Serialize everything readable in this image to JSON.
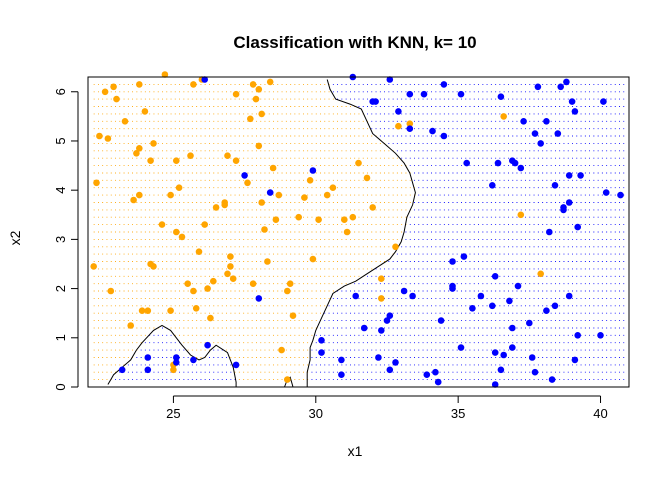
{
  "chart_data": {
    "type": "scatter",
    "title": "Classification with KNN, k= 10",
    "xlabel": "x1",
    "ylabel": "x2",
    "xlim": [
      22,
      41
    ],
    "ylim": [
      0,
      6.3
    ],
    "x_ticks": [
      25,
      30,
      35,
      40
    ],
    "y_ticks": [
      0,
      1,
      2,
      3,
      4,
      5,
      6
    ],
    "grid": false,
    "legend": "none",
    "background_grid": {
      "x_range": [
        22.2,
        40.8
      ],
      "y_range": [
        0,
        6.25
      ],
      "step": 0.15
    },
    "decision_boundary": [
      [
        [
          22.7,
          0.05
        ],
        [
          22.8,
          0.15
        ],
        [
          22.9,
          0.25
        ],
        [
          23.2,
          0.4
        ],
        [
          23.5,
          0.55
        ],
        [
          23.7,
          0.75
        ],
        [
          23.9,
          0.9
        ],
        [
          24.3,
          1.15
        ],
        [
          24.6,
          1.25
        ],
        [
          24.9,
          1.15
        ],
        [
          25.1,
          1.0
        ],
        [
          25.3,
          0.85
        ],
        [
          25.6,
          0.65
        ],
        [
          25.9,
          0.55
        ],
        [
          26.1,
          0.6
        ],
        [
          26.3,
          0.75
        ],
        [
          26.5,
          0.85
        ],
        [
          26.9,
          0.7
        ],
        [
          27.1,
          0.4
        ],
        [
          27.2,
          0.1
        ],
        [
          27.2,
          0.0
        ]
      ],
      [
        [
          28.9,
          0.0
        ],
        [
          29.0,
          0.15
        ],
        [
          29.1,
          0.2
        ],
        [
          29.2,
          0.0
        ]
      ],
      [
        [
          29.7,
          0.0
        ],
        [
          29.7,
          0.3
        ],
        [
          29.8,
          0.55
        ],
        [
          29.8,
          0.8
        ],
        [
          29.9,
          0.95
        ],
        [
          30.0,
          1.15
        ],
        [
          30.2,
          1.4
        ],
        [
          30.4,
          1.65
        ],
        [
          30.6,
          1.9
        ],
        [
          31.0,
          2.05
        ],
        [
          31.4,
          2.15
        ],
        [
          31.8,
          2.3
        ],
        [
          32.2,
          2.45
        ],
        [
          32.6,
          2.6
        ],
        [
          32.8,
          2.75
        ],
        [
          33.0,
          2.95
        ],
        [
          33.1,
          3.15
        ],
        [
          33.2,
          3.45
        ],
        [
          33.4,
          3.7
        ],
        [
          33.5,
          3.95
        ],
        [
          33.3,
          4.35
        ],
        [
          33.1,
          4.55
        ],
        [
          32.8,
          4.75
        ],
        [
          32.4,
          4.95
        ],
        [
          32.0,
          5.15
        ],
        [
          31.8,
          5.4
        ],
        [
          31.6,
          5.65
        ],
        [
          31.2,
          5.75
        ],
        [
          30.7,
          5.85
        ],
        [
          30.5,
          6.05
        ],
        [
          30.4,
          6.25
        ]
      ]
    ],
    "series": [
      {
        "color": "#ffa500",
        "points": [
          [
            22.2,
            2.45
          ],
          [
            22.3,
            4.15
          ],
          [
            22.4,
            5.1
          ],
          [
            22.6,
            6.0
          ],
          [
            22.7,
            5.05
          ],
          [
            22.8,
            1.95
          ],
          [
            22.9,
            6.1
          ],
          [
            23.0,
            5.85
          ],
          [
            23.3,
            5.4
          ],
          [
            23.5,
            1.25
          ],
          [
            23.6,
            3.8
          ],
          [
            23.7,
            4.75
          ],
          [
            23.8,
            4.85
          ],
          [
            23.8,
            6.15
          ],
          [
            23.8,
            3.9
          ],
          [
            23.9,
            1.55
          ],
          [
            24.0,
            5.6
          ],
          [
            24.1,
            1.55
          ],
          [
            24.2,
            4.6
          ],
          [
            24.2,
            2.5
          ],
          [
            24.3,
            2.45
          ],
          [
            24.3,
            4.95
          ],
          [
            24.6,
            3.3
          ],
          [
            24.7,
            6.35
          ],
          [
            24.9,
            1.55
          ],
          [
            24.9,
            3.9
          ],
          [
            25.0,
            0.35
          ],
          [
            25.0,
            0.45
          ],
          [
            25.1,
            4.6
          ],
          [
            25.1,
            3.15
          ],
          [
            25.2,
            4.05
          ],
          [
            25.3,
            3.05
          ],
          [
            25.5,
            2.1
          ],
          [
            25.6,
            4.7
          ],
          [
            25.7,
            1.95
          ],
          [
            25.7,
            6.15
          ],
          [
            25.8,
            1.6
          ],
          [
            25.9,
            2.75
          ],
          [
            26.0,
            6.25
          ],
          [
            26.1,
            3.3
          ],
          [
            26.2,
            2.0
          ],
          [
            26.3,
            1.4
          ],
          [
            26.4,
            2.15
          ],
          [
            26.5,
            3.65
          ],
          [
            26.8,
            3.75
          ],
          [
            26.8,
            3.7
          ],
          [
            26.9,
            2.3
          ],
          [
            26.9,
            4.7
          ],
          [
            27.0,
            2.45
          ],
          [
            27.0,
            2.65
          ],
          [
            27.1,
            2.2
          ],
          [
            27.2,
            5.95
          ],
          [
            27.2,
            4.6
          ],
          [
            27.6,
            4.15
          ],
          [
            27.7,
            5.45
          ],
          [
            27.8,
            6.15
          ],
          [
            27.8,
            2.1
          ],
          [
            27.9,
            5.85
          ],
          [
            28.0,
            6.05
          ],
          [
            28.0,
            4.9
          ],
          [
            28.1,
            3.75
          ],
          [
            28.1,
            5.55
          ],
          [
            28.2,
            3.2
          ],
          [
            28.3,
            2.55
          ],
          [
            28.4,
            6.2
          ],
          [
            28.5,
            4.45
          ],
          [
            28.6,
            3.4
          ],
          [
            28.7,
            3.9
          ],
          [
            28.8,
            0.75
          ],
          [
            29.0,
            1.95
          ],
          [
            29.0,
            0.15
          ],
          [
            29.1,
            2.1
          ],
          [
            29.2,
            1.45
          ],
          [
            29.4,
            3.45
          ],
          [
            29.6,
            3.85
          ],
          [
            29.8,
            4.2
          ],
          [
            29.9,
            2.6
          ],
          [
            30.1,
            3.4
          ],
          [
            30.4,
            3.9
          ],
          [
            30.6,
            4.05
          ],
          [
            31.0,
            3.4
          ],
          [
            31.1,
            3.15
          ],
          [
            31.3,
            3.45
          ],
          [
            31.5,
            4.55
          ],
          [
            31.8,
            4.25
          ],
          [
            32.0,
            3.65
          ],
          [
            32.3,
            2.2
          ],
          [
            32.3,
            1.8
          ],
          [
            32.8,
            2.85
          ],
          [
            32.9,
            5.3
          ],
          [
            33.3,
            5.35
          ],
          [
            36.6,
            5.5
          ],
          [
            37.2,
            3.5
          ],
          [
            37.9,
            2.3
          ]
        ]
      },
      {
        "color": "#0000ff",
        "points": [
          [
            23.2,
            0.35
          ],
          [
            24.1,
            0.6
          ],
          [
            24.1,
            0.35
          ],
          [
            25.1,
            0.6
          ],
          [
            25.1,
            0.5
          ],
          [
            25.7,
            0.55
          ],
          [
            26.1,
            6.25
          ],
          [
            26.2,
            0.85
          ],
          [
            27.2,
            0.45
          ],
          [
            27.5,
            4.3
          ],
          [
            28.0,
            1.8
          ],
          [
            28.4,
            3.95
          ],
          [
            29.9,
            4.4
          ],
          [
            30.2,
            0.7
          ],
          [
            30.2,
            0.95
          ],
          [
            30.9,
            0.55
          ],
          [
            30.9,
            0.25
          ],
          [
            31.3,
            6.3
          ],
          [
            31.4,
            1.85
          ],
          [
            31.7,
            1.2
          ],
          [
            32.0,
            5.8
          ],
          [
            32.1,
            5.8
          ],
          [
            32.2,
            0.6
          ],
          [
            32.3,
            1.15
          ],
          [
            32.5,
            1.35
          ],
          [
            32.6,
            1.45
          ],
          [
            32.6,
            6.25
          ],
          [
            32.6,
            0.35
          ],
          [
            32.8,
            0.5
          ],
          [
            32.9,
            5.6
          ],
          [
            33.1,
            1.95
          ],
          [
            33.3,
            5.25
          ],
          [
            33.3,
            5.95
          ],
          [
            33.4,
            1.85
          ],
          [
            33.8,
            5.95
          ],
          [
            33.9,
            0.25
          ],
          [
            34.1,
            5.2
          ],
          [
            34.2,
            0.3
          ],
          [
            34.3,
            0.1
          ],
          [
            34.4,
            1.35
          ],
          [
            34.5,
            6.15
          ],
          [
            34.5,
            5.1
          ],
          [
            34.8,
            2.05
          ],
          [
            34.8,
            2.0
          ],
          [
            34.8,
            2.55
          ],
          [
            35.1,
            0.8
          ],
          [
            35.1,
            5.95
          ],
          [
            35.2,
            2.65
          ],
          [
            35.3,
            4.55
          ],
          [
            35.5,
            1.6
          ],
          [
            35.8,
            1.85
          ],
          [
            36.2,
            1.65
          ],
          [
            36.2,
            4.1
          ],
          [
            36.3,
            2.25
          ],
          [
            36.3,
            0.05
          ],
          [
            36.3,
            0.7
          ],
          [
            36.4,
            4.55
          ],
          [
            36.5,
            5.9
          ],
          [
            36.5,
            0.35
          ],
          [
            36.6,
            0.65
          ],
          [
            36.8,
            1.75
          ],
          [
            36.9,
            0.8
          ],
          [
            36.9,
            1.2
          ],
          [
            36.9,
            4.6
          ],
          [
            37.0,
            4.55
          ],
          [
            37.1,
            2.05
          ],
          [
            37.2,
            4.45
          ],
          [
            37.3,
            5.4
          ],
          [
            37.5,
            1.3
          ],
          [
            37.6,
            0.6
          ],
          [
            37.7,
            0.3
          ],
          [
            37.7,
            5.15
          ],
          [
            37.8,
            6.1
          ],
          [
            37.9,
            4.95
          ],
          [
            38.1,
            1.55
          ],
          [
            38.1,
            5.4
          ],
          [
            38.2,
            3.15
          ],
          [
            38.3,
            0.15
          ],
          [
            38.4,
            1.65
          ],
          [
            38.4,
            4.1
          ],
          [
            38.5,
            5.15
          ],
          [
            38.6,
            6.1
          ],
          [
            38.7,
            3.6
          ],
          [
            38.7,
            3.65
          ],
          [
            38.8,
            6.2
          ],
          [
            38.9,
            1.85
          ],
          [
            38.9,
            4.3
          ],
          [
            38.9,
            3.75
          ],
          [
            39.0,
            5.8
          ],
          [
            39.1,
            5.6
          ],
          [
            39.1,
            0.55
          ],
          [
            39.2,
            3.25
          ],
          [
            39.2,
            1.05
          ],
          [
            39.3,
            4.3
          ],
          [
            40.0,
            1.05
          ],
          [
            40.1,
            5.8
          ],
          [
            40.2,
            3.95
          ],
          [
            40.7,
            3.9
          ]
        ]
      }
    ]
  }
}
